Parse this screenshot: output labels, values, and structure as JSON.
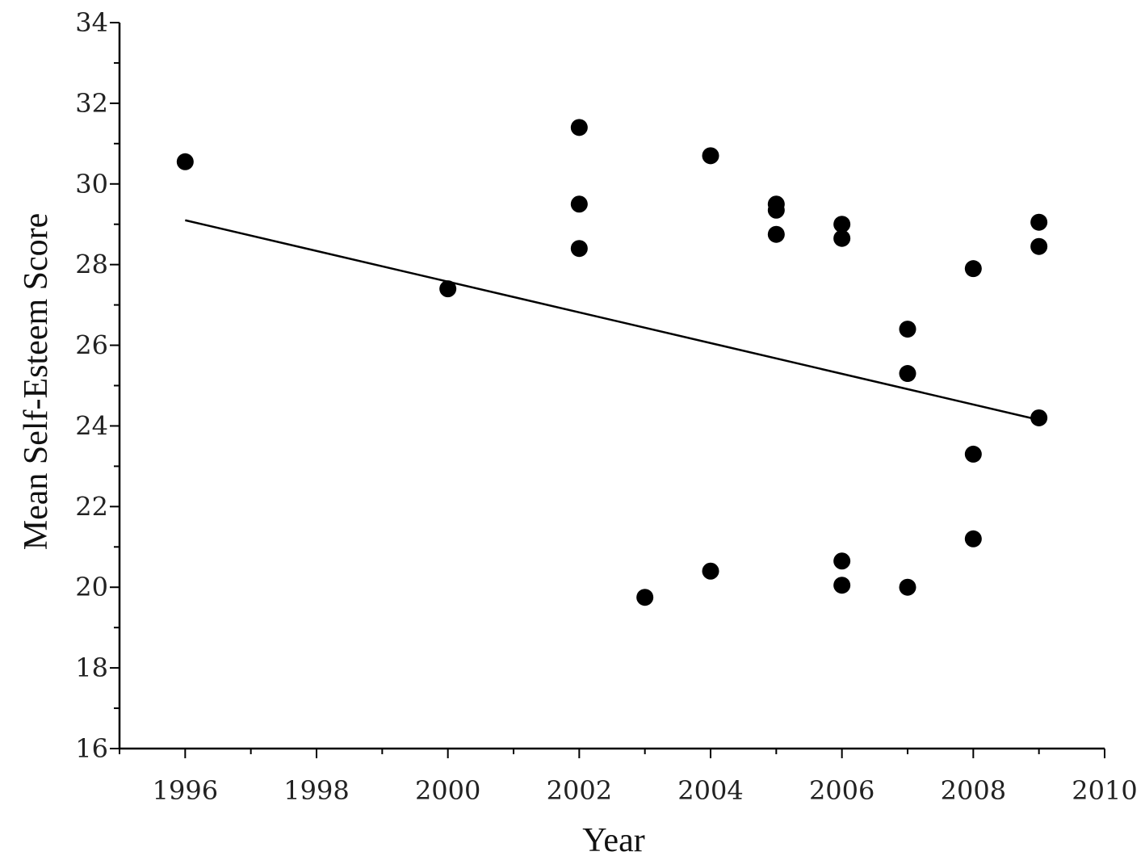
{
  "chart_data": {
    "type": "scatter",
    "title": "",
    "xlabel": "Year",
    "ylabel": "Mean Self-Esteem Score",
    "xlim": [
      1995,
      2010
    ],
    "ylim": [
      16,
      34
    ],
    "x_ticks": [
      1996,
      1998,
      2000,
      2002,
      2004,
      2006,
      2008,
      2010
    ],
    "y_ticks": [
      16,
      18,
      20,
      22,
      24,
      26,
      28,
      30,
      32,
      34
    ],
    "grid": false,
    "legend": "none",
    "series": [
      {
        "points": [
          {
            "x": 1996,
            "y": 30.55
          },
          {
            "x": 2000,
            "y": 27.4
          },
          {
            "x": 2002,
            "y": 31.4
          },
          {
            "x": 2002,
            "y": 29.5
          },
          {
            "x": 2002,
            "y": 28.4
          },
          {
            "x": 2003,
            "y": 19.75
          },
          {
            "x": 2004,
            "y": 30.7
          },
          {
            "x": 2004,
            "y": 20.4
          },
          {
            "x": 2005,
            "y": 29.5
          },
          {
            "x": 2005,
            "y": 29.35
          },
          {
            "x": 2005,
            "y": 28.75
          },
          {
            "x": 2006,
            "y": 29.0
          },
          {
            "x": 2006,
            "y": 28.65
          },
          {
            "x": 2006,
            "y": 20.65
          },
          {
            "x": 2006,
            "y": 20.05
          },
          {
            "x": 2007,
            "y": 26.4
          },
          {
            "x": 2007,
            "y": 25.3
          },
          {
            "x": 2007,
            "y": 20.0
          },
          {
            "x": 2008,
            "y": 27.9
          },
          {
            "x": 2008,
            "y": 23.3
          },
          {
            "x": 2008,
            "y": 21.2
          },
          {
            "x": 2009,
            "y": 29.05
          },
          {
            "x": 2009,
            "y": 28.45
          },
          {
            "x": 2009,
            "y": 24.2
          }
        ]
      }
    ],
    "trend_line": {
      "x": [
        1996,
        2009
      ],
      "y": [
        29.1,
        24.15
      ]
    },
    "colors": {
      "marker": "#000000",
      "line": "#000000",
      "axis": "#000000"
    }
  }
}
